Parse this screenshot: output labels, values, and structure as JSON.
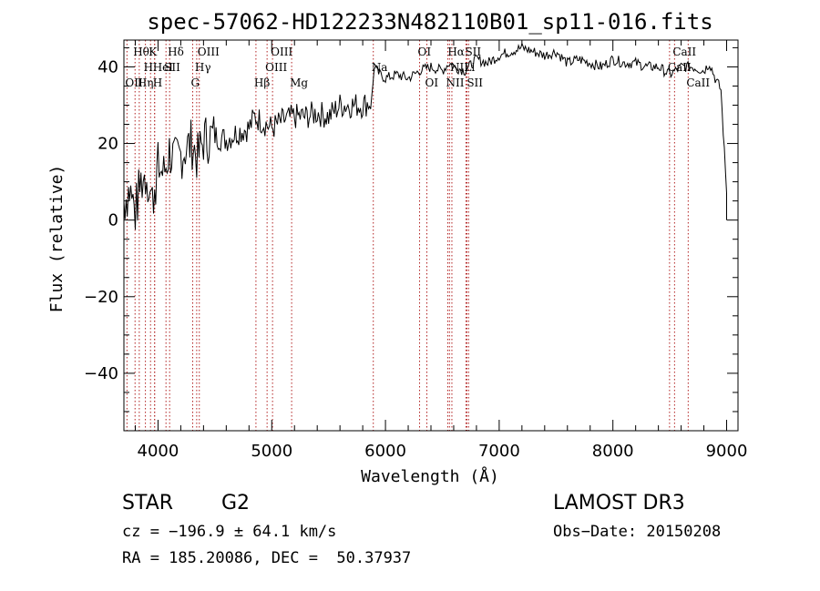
{
  "chart_data": {
    "type": "line",
    "title": "spec-57062-HD122233N482110B01_sp11-016.fits",
    "xlabel": "Wavelength (Å)",
    "ylabel": "Flux (relative)",
    "xlim": [
      3700,
      9100
    ],
    "ylim": [
      -55,
      47
    ],
    "xticks": [
      4000,
      5000,
      6000,
      7000,
      8000,
      9000
    ],
    "xtick_labels": [
      "4000",
      "5000",
      "6000",
      "7000",
      "8000",
      "9000"
    ],
    "yticks": [
      -40,
      -20,
      0,
      20,
      40
    ],
    "ytick_labels": [
      "−40",
      "−20",
      "0",
      "20",
      "40"
    ],
    "series": [
      {
        "name": "spectrum",
        "x": [
          3700,
          3750,
          3800,
          3850,
          3900,
          3950,
          4000,
          4050,
          4100,
          4150,
          4200,
          4250,
          4300,
          4350,
          4400,
          4500,
          4600,
          4700,
          4800,
          4850,
          4900,
          5000,
          5100,
          5200,
          5300,
          5400,
          5500,
          5600,
          5700,
          5800,
          5880,
          5900,
          5950,
          6000,
          6100,
          6200,
          6300,
          6400,
          6500,
          6560,
          6600,
          6700,
          6800,
          6900,
          7000,
          7100,
          7200,
          7300,
          7400,
          7500,
          7600,
          7700,
          7800,
          7900,
          8000,
          8100,
          8200,
          8300,
          8400,
          8500,
          8600,
          8700,
          8800,
          8850,
          8900,
          8950,
          9000
        ],
        "y": [
          5,
          8,
          2,
          10,
          12,
          5,
          14,
          12,
          18,
          15,
          17,
          19,
          20,
          16,
          21,
          22,
          21,
          23,
          24,
          27,
          26,
          24,
          26,
          27,
          27,
          28,
          27,
          30,
          30,
          30,
          31,
          40,
          38,
          37,
          38,
          37,
          39,
          40,
          39,
          41,
          40,
          39,
          42,
          41,
          43,
          44,
          45,
          44,
          43,
          44,
          41,
          42,
          41,
          40,
          42,
          41,
          41,
          40,
          40,
          38,
          40,
          40,
          39,
          41,
          37,
          34,
          7
        ]
      }
    ],
    "lines": [
      {
        "name": "Hθ",
        "x": 3798,
        "row": 0
      },
      {
        "name": "K",
        "x": 3934,
        "row": 0
      },
      {
        "name": "Hδ",
        "x": 4102,
        "row": 0
      },
      {
        "name": "OIII",
        "x": 4363,
        "row": 0
      },
      {
        "name": "OIII",
        "x": 5007,
        "row": 0
      },
      {
        "name": "OI",
        "x": 6300,
        "row": 0
      },
      {
        "name": "Hα",
        "x": 6563,
        "row": 0
      },
      {
        "name": "SII",
        "x": 6716,
        "row": 0
      },
      {
        "name": "CaII",
        "x": 8542,
        "row": 0
      },
      {
        "name": "H",
        "x": 3889,
        "row": 1
      },
      {
        "name": "HeI",
        "x": 3970,
        "row": 1
      },
      {
        "name": "SII",
        "x": 4070,
        "row": 1
      },
      {
        "name": "Hγ",
        "x": 4340,
        "row": 1
      },
      {
        "name": "OIII",
        "x": 4959,
        "row": 1
      },
      {
        "name": "Na",
        "x": 5893,
        "row": 1
      },
      {
        "name": "NII",
        "x": 6584,
        "row": 1
      },
      {
        "name": "Li",
        "x": 6708,
        "row": 1
      },
      {
        "name": "CaII",
        "x": 8498,
        "row": 1
      },
      {
        "name": "OII",
        "x": 3727,
        "row": 2
      },
      {
        "name": "Hη",
        "x": 3835,
        "row": 2
      },
      {
        "name": "H",
        "x": 3970,
        "row": 2
      },
      {
        "name": "G",
        "x": 4305,
        "row": 2
      },
      {
        "name": "Hβ",
        "x": 4861,
        "row": 2
      },
      {
        "name": "Mg",
        "x": 5175,
        "row": 2
      },
      {
        "name": "OI",
        "x": 6364,
        "row": 2
      },
      {
        "name": "NII",
        "x": 6548,
        "row": 2
      },
      {
        "name": "SII",
        "x": 6731,
        "row": 2
      },
      {
        "name": "CaII",
        "x": 8662,
        "row": 2
      }
    ]
  },
  "info": {
    "class": "STAR",
    "subclass": "G2",
    "survey": "LAMOST DR3",
    "cz": "cz = −196.9 ± 64.1 km/s",
    "obsdate": "Obs−Date: 20150208",
    "radec": "RA = 185.20086, DEC =  50.37937"
  },
  "colors": {
    "axis": "#000000",
    "line_marker": "#b22222",
    "spectrum": "#000000"
  }
}
